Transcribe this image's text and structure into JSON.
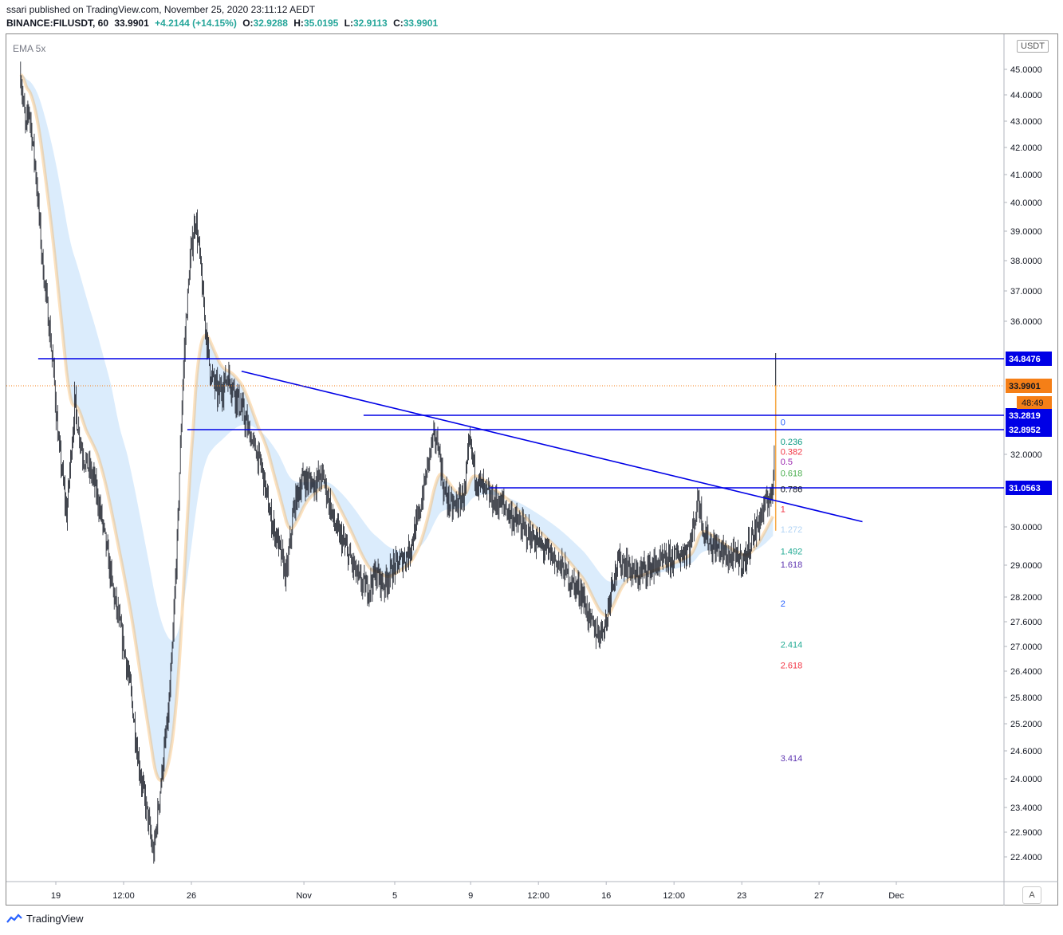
{
  "header": {
    "published": "ssari published on TradingView.com, November 25, 2020 23:11:12 AEDT",
    "symbol": "BINANCE:FILUSDT, 60",
    "last": "33.9901",
    "change": "+4.2144 (+14.15%)",
    "o_label": "O:",
    "o": "32.9288",
    "h_label": "H:",
    "h": "35.0195",
    "l_label": "L:",
    "l": "32.9113",
    "c_label": "C:",
    "c": "33.9901"
  },
  "indicator_label": "EMA 5x",
  "currency": "USDT",
  "auto_label": "A",
  "footer_brand": "TradingView",
  "colors": {
    "level_line": "#0000e6",
    "candle": "#131722",
    "ema": "#f7a945",
    "ema_band": "#cfe6fb",
    "last_price": "#f57f17"
  },
  "chart_data": {
    "type": "candlestick",
    "ylim": [
      21.8,
      46.0
    ],
    "y_ticks": [
      "45.0000",
      "44.0000",
      "43.0000",
      "42.0000",
      "41.0000",
      "40.0000",
      "39.0000",
      "38.0000",
      "37.0000",
      "36.0000",
      "32.0000",
      "30.0000",
      "29.0000",
      "28.2000",
      "27.6000",
      "27.0000",
      "26.4000",
      "25.8000",
      "25.2000",
      "24.6000",
      "24.0000",
      "23.4000",
      "22.9000",
      "22.4000"
    ],
    "x_ticks": [
      {
        "label": "19",
        "t": 0.0
      },
      {
        "label": "12:00",
        "t": 0.5
      },
      {
        "label": "26",
        "t": 1.0
      },
      {
        "label": "Nov",
        "t": 1.83
      },
      {
        "label": "5",
        "t": 2.5
      },
      {
        "label": "9",
        "t": 3.06
      },
      {
        "label": "12:00",
        "t": 3.56
      },
      {
        "label": "16",
        "t": 4.06
      },
      {
        "label": "12:00",
        "t": 4.56
      },
      {
        "label": "23",
        "t": 5.06
      },
      {
        "label": "27",
        "t": 5.63
      },
      {
        "label": "Dec",
        "t": 6.2
      }
    ],
    "price_path": [
      [
        -0.26,
        44.8
      ],
      [
        -0.22,
        42.6
      ],
      [
        -0.2,
        43.6
      ],
      [
        -0.15,
        41.2
      ],
      [
        -0.1,
        38.0
      ],
      [
        -0.02,
        34.6
      ],
      [
        0.02,
        32.4
      ],
      [
        0.08,
        30.3
      ],
      [
        0.14,
        33.6
      ],
      [
        0.2,
        32.0
      ],
      [
        0.28,
        31.3
      ],
      [
        0.34,
        30.2
      ],
      [
        0.42,
        28.4
      ],
      [
        0.5,
        27.0
      ],
      [
        0.55,
        26.0
      ],
      [
        0.6,
        24.6
      ],
      [
        0.63,
        24.0
      ],
      [
        0.68,
        23.2
      ],
      [
        0.72,
        22.4
      ],
      [
        0.76,
        23.5
      ],
      [
        0.8,
        24.6
      ],
      [
        0.83,
        25.4
      ],
      [
        0.86,
        26.9
      ],
      [
        0.9,
        30.0
      ],
      [
        0.93,
        33.6
      ],
      [
        0.96,
        36.0
      ],
      [
        0.99,
        38.0
      ],
      [
        1.03,
        39.5
      ],
      [
        1.06,
        38.2
      ],
      [
        1.1,
        36.0
      ],
      [
        1.14,
        34.4
      ],
      [
        1.2,
        33.8
      ],
      [
        1.27,
        34.3
      ],
      [
        1.33,
        33.8
      ],
      [
        1.38,
        33.3
      ],
      [
        1.44,
        32.6
      ],
      [
        1.52,
        31.6
      ],
      [
        1.58,
        30.3
      ],
      [
        1.64,
        29.6
      ],
      [
        1.7,
        28.7
      ],
      [
        1.76,
        30.6
      ],
      [
        1.82,
        31.3
      ],
      [
        1.9,
        31.2
      ],
      [
        1.97,
        31.4
      ],
      [
        2.02,
        30.6
      ],
      [
        2.06,
        30.0
      ],
      [
        2.12,
        29.6
      ],
      [
        2.18,
        29.1
      ],
      [
        2.24,
        28.6
      ],
      [
        2.3,
        28.4
      ],
      [
        2.36,
        28.8
      ],
      [
        2.42,
        28.5
      ],
      [
        2.48,
        28.9
      ],
      [
        2.54,
        29.1
      ],
      [
        2.6,
        29.3
      ],
      [
        2.68,
        30.3
      ],
      [
        2.74,
        31.6
      ],
      [
        2.78,
        32.6
      ],
      [
        2.82,
        32.4
      ],
      [
        2.86,
        31.0
      ],
      [
        2.92,
        30.5
      ],
      [
        2.98,
        30.7
      ],
      [
        3.02,
        31.0
      ],
      [
        3.05,
        32.5
      ],
      [
        3.1,
        31.3
      ],
      [
        3.16,
        31.0
      ],
      [
        3.22,
        30.7
      ],
      [
        3.3,
        30.6
      ],
      [
        3.38,
        30.2
      ],
      [
        3.46,
        29.9
      ],
      [
        3.52,
        29.7
      ],
      [
        3.58,
        29.5
      ],
      [
        3.64,
        29.3
      ],
      [
        3.72,
        29.0
      ],
      [
        3.8,
        28.6
      ],
      [
        3.88,
        28.3
      ],
      [
        3.94,
        27.6
      ],
      [
        4.0,
        27.3
      ],
      [
        4.06,
        27.6
      ],
      [
        4.1,
        28.6
      ],
      [
        4.16,
        29.1
      ],
      [
        4.22,
        29.0
      ],
      [
        4.28,
        28.7
      ],
      [
        4.34,
        28.9
      ],
      [
        4.42,
        29.0
      ],
      [
        4.5,
        29.1
      ],
      [
        4.56,
        29.2
      ],
      [
        4.62,
        29.3
      ],
      [
        4.68,
        29.5
      ],
      [
        4.74,
        30.8
      ],
      [
        4.78,
        29.9
      ],
      [
        4.84,
        29.5
      ],
      [
        4.9,
        29.4
      ],
      [
        4.96,
        29.2
      ],
      [
        5.02,
        29.2
      ],
      [
        5.08,
        29.1
      ],
      [
        5.12,
        29.6
      ],
      [
        5.16,
        29.9
      ],
      [
        5.2,
        30.3
      ],
      [
        5.24,
        30.6
      ],
      [
        5.27,
        30.9
      ],
      [
        5.29,
        30.9
      ],
      [
        5.31,
        33.99
      ]
    ],
    "horizontal_levels": [
      {
        "price": 34.8476,
        "label": "34.8476",
        "t_from": -0.13
      },
      {
        "price": 33.2819,
        "label": "33.2819",
        "t_from": 2.27
      },
      {
        "price": 32.8952,
        "label": "32.8952",
        "t_from": 0.97
      },
      {
        "price": 31.0563,
        "label": "31.0563",
        "t_from": 3.2
      }
    ],
    "trendline": {
      "from": {
        "t": 1.37,
        "price": 34.45
      },
      "to": {
        "t": 5.95,
        "price": 30.14
      }
    },
    "last_price": {
      "price": 33.9901,
      "label": "33.9901",
      "countdown": "48:49"
    },
    "fib": {
      "t": 5.31,
      "levels": [
        {
          "ratio": "0",
          "price": 33.1,
          "color": "#2962ff"
        },
        {
          "ratio": "0.236",
          "price": 32.46,
          "color": "#089981"
        },
        {
          "ratio": "0.382",
          "price": 32.1,
          "color": "#f23645"
        },
        {
          "ratio": "0.5",
          "price": 31.8,
          "color": "#9c27b0"
        },
        {
          "ratio": "0.618",
          "price": 31.47,
          "color": "#4caf50"
        },
        {
          "ratio": "0.786",
          "price": 31.02,
          "color": "#131722"
        },
        {
          "ratio": "1",
          "price": 30.49,
          "color": "#f23645"
        },
        {
          "ratio": "1.272",
          "price": 29.94,
          "color": "#b2d4f5"
        },
        {
          "ratio": "1.492",
          "price": 29.36,
          "color": "#22ab94"
        },
        {
          "ratio": "1.618",
          "price": 29.02,
          "color": "#5e35b1"
        },
        {
          "ratio": "2",
          "price": 28.05,
          "color": "#2962ff"
        },
        {
          "ratio": "2.414",
          "price": 27.05,
          "color": "#22ab94"
        },
        {
          "ratio": "2.618",
          "price": 26.55,
          "color": "#f23645"
        },
        {
          "ratio": "3.414",
          "price": 24.45,
          "color": "#5e35b1"
        }
      ]
    }
  }
}
